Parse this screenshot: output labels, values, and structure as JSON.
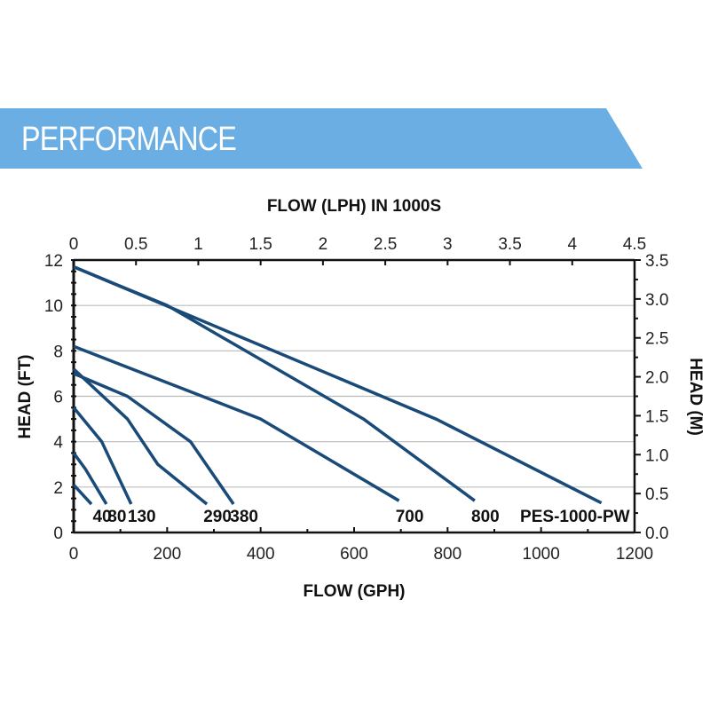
{
  "header": {
    "title": "PERFORMANCE",
    "band_color": "#6aaee3"
  },
  "chart_data": {
    "type": "line",
    "xlabel": "FLOW (GPH)",
    "x2label": "FLOW (LPH) IN 1000S",
    "ylabel": "HEAD (FT)",
    "y2label": "HEAD (M)",
    "xlim": [
      0,
      1200
    ],
    "ylim": [
      0,
      12
    ],
    "x2lim": [
      0,
      4.5
    ],
    "y2lim": [
      0,
      3.5
    ],
    "xticks": [
      "0",
      "200",
      "400",
      "600",
      "800",
      "1000",
      "1200"
    ],
    "yticks": [
      "0",
      "2",
      "4",
      "6",
      "8",
      "10",
      "12"
    ],
    "x2ticks": [
      "0",
      "0.5",
      "1",
      "1.5",
      "2",
      "2.5",
      "3",
      "3.5",
      "4",
      "4.5"
    ],
    "y2ticks": [
      "0.0",
      "0.5",
      "1.0",
      "1.5",
      "2.0",
      "2.5",
      "3.0",
      "3.5"
    ],
    "grid": true,
    "line_color": "#1a4a78",
    "series": [
      {
        "name": "40",
        "points": [
          [
            0,
            2.1
          ],
          [
            38,
            1.25
          ]
        ]
      },
      {
        "name": "80",
        "points": [
          [
            0,
            3.5
          ],
          [
            25,
            2.8
          ],
          [
            70,
            1.25
          ]
        ]
      },
      {
        "name": "130",
        "points": [
          [
            0,
            5.5
          ],
          [
            60,
            4
          ],
          [
            123,
            1.25
          ]
        ]
      },
      {
        "name": "290",
        "points": [
          [
            0,
            7.2
          ],
          [
            115,
            5
          ],
          [
            180,
            3
          ],
          [
            285,
            1.25
          ]
        ]
      },
      {
        "name": "380",
        "points": [
          [
            0,
            7
          ],
          [
            115,
            6
          ],
          [
            250,
            4
          ],
          [
            342,
            1.25
          ]
        ]
      },
      {
        "name": "700",
        "points": [
          [
            0,
            8.2
          ],
          [
            400,
            5
          ],
          [
            696,
            1.4
          ]
        ]
      },
      {
        "name": "800",
        "points": [
          [
            0,
            11.7
          ],
          [
            200,
            10
          ],
          [
            620,
            5
          ],
          [
            858,
            1.4
          ]
        ]
      },
      {
        "name": "PES-1000-PW",
        "points": [
          [
            0,
            11.7
          ],
          [
            775,
            5
          ],
          [
            1129,
            1.3
          ]
        ]
      }
    ]
  }
}
